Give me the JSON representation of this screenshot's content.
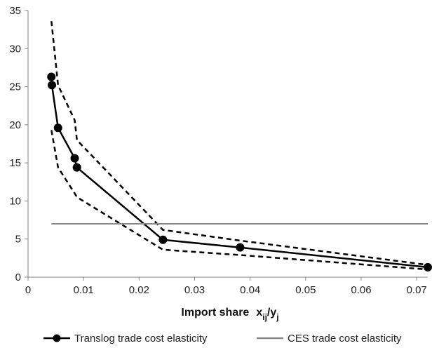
{
  "chart_data": {
    "type": "line",
    "title": "",
    "xlabel": {
      "text": "Import share",
      "formula": "x_ij/y_j",
      "main": "x",
      "sub1": "ij",
      "slash": "/y",
      "sub2": "j"
    },
    "ylabel": "",
    "xlim": [
      0,
      0.072
    ],
    "ylim": [
      0,
      35
    ],
    "xticks": [
      0,
      0.01,
      0.02,
      0.03,
      0.04,
      0.05,
      0.06,
      0.07
    ],
    "xtick_labels": [
      "0",
      "0.01",
      "0.02",
      "0.03",
      "0.04",
      "0.05",
      "0.06",
      "0.07"
    ],
    "yticks": [
      0,
      5,
      10,
      15,
      20,
      25,
      30,
      35
    ],
    "ytick_labels": [
      "0",
      "5",
      "10",
      "15",
      "20",
      "25",
      "30",
      "35"
    ],
    "grid": false,
    "legend_position": "bottom",
    "series": [
      {
        "name": "Translog trade cost elasticity",
        "style": "solid-markers",
        "color": "#000000",
        "points": [
          [
            0.0042,
            26.3
          ],
          [
            0.0043,
            25.2
          ],
          [
            0.0054,
            19.6
          ],
          [
            0.0084,
            15.6
          ],
          [
            0.0088,
            14.4
          ],
          [
            0.0243,
            4.9
          ],
          [
            0.0382,
            3.9
          ],
          [
            0.072,
            1.3
          ]
        ]
      },
      {
        "style": "dashed",
        "color": "#000000",
        "points": [
          [
            0.0042,
            33.6
          ],
          [
            0.0054,
            25.2
          ],
          [
            0.0084,
            20.6
          ],
          [
            0.0088,
            18.0
          ],
          [
            0.0243,
            6.2
          ],
          [
            0.0382,
            4.8
          ],
          [
            0.072,
            1.6
          ]
        ]
      },
      {
        "style": "dashed",
        "color": "#000000",
        "points": [
          [
            0.0042,
            19.3
          ],
          [
            0.0054,
            14.4
          ],
          [
            0.0084,
            11.0
          ],
          [
            0.0088,
            10.5
          ],
          [
            0.0243,
            3.6
          ],
          [
            0.0382,
            2.9
          ],
          [
            0.072,
            1.0
          ]
        ]
      },
      {
        "name": "CES trade cost elasticity",
        "style": "solid",
        "color": "#888888",
        "points": [
          [
            0.0042,
            7.0
          ],
          [
            0.072,
            7.0
          ]
        ]
      }
    ]
  }
}
